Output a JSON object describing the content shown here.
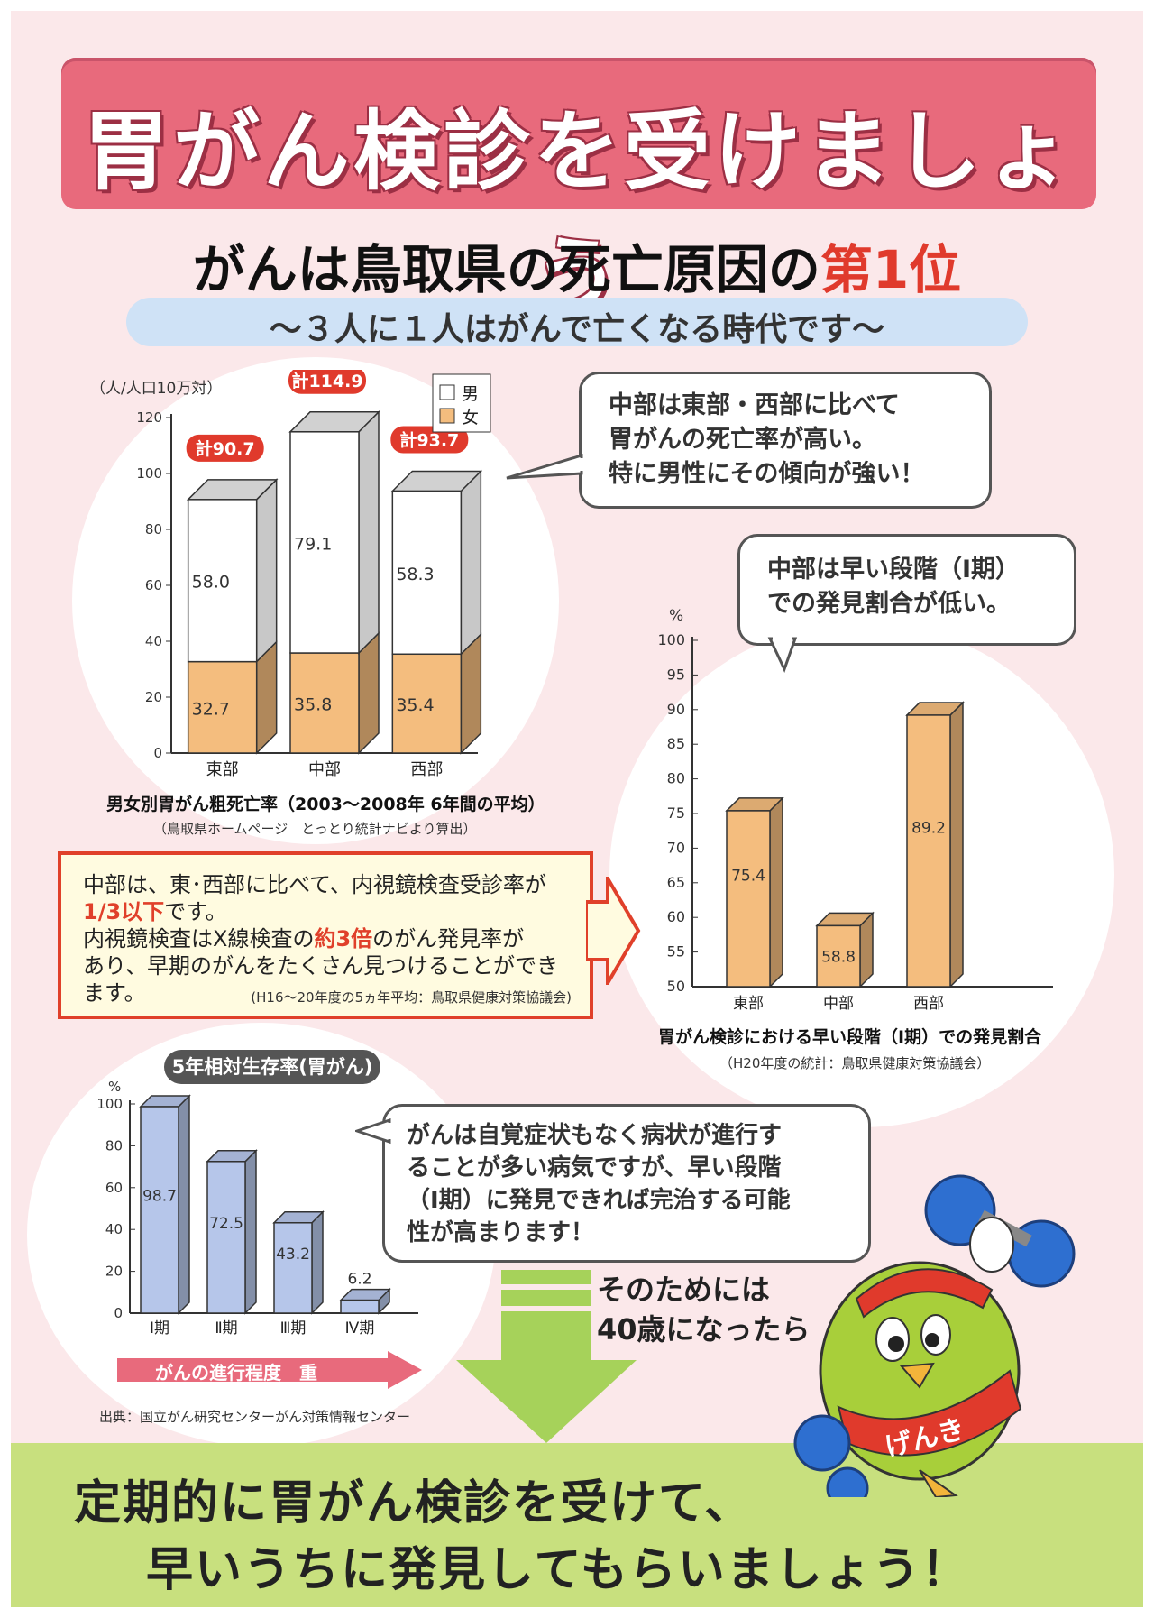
{
  "title": "胃がん検診を受けましょう",
  "headline": {
    "text": "がんは鳥取県の死亡原因の",
    "rank": "第1位"
  },
  "subline": "～３人に１人はがんで亡くなる時代です～",
  "chart1_bubble": [
    "中部は東部・西部に比べて",
    "胃がんの死亡率が高い。",
    "特に男性にその傾向が強い！"
  ],
  "chart2_bubble": [
    "中部は早い段階（Ⅰ期）",
    "での発見割合が低い。"
  ],
  "chart3_bubble": [
    "がんは自覚症状もなく病状が進行す",
    "ることが多い病気ですが、早い段階",
    "（Ⅰ期）に発見できれば完治する可能",
    "性が高まります！"
  ],
  "info_box": {
    "l1": "中部は、東･西部に比べて、内視鏡検査受診率が",
    "l2_hl": "1/3以下",
    "l2": "です。",
    "l3a": "内視鏡検査はX線検査の",
    "l3_hl": "約3倍",
    "l3b": "のがん発見率が",
    "l4": "あり、早期のがんをたくさん見つけることができ",
    "l5": "ます。",
    "source": "(H16～20年度の5ヵ年平均：鳥取県健康対策協議会)"
  },
  "survival_badge": "5年相対生存率(胃がん)",
  "stage_label": "がんの進行程度　重",
  "source3": "出典：国立がん研究センターがん対策情報センター",
  "callout": [
    "そのためには",
    "40歳になったら"
  ],
  "footer": [
    "定期的に胃がん検診を受けて、",
    "早いうちに発見してもらいましょう！"
  ],
  "mascot_text": "げんき",
  "colors": {
    "bar_female": "#f4bd7e",
    "bar_male": "#ffffff",
    "bar_stage": "#b6c6ea",
    "accent_red": "#e0402a",
    "banner": "#e86a7c"
  },
  "chart_data": [
    {
      "type": "bar",
      "title": "男女別胃がん粗死亡率（2003～2008年 6年間の平均）",
      "source": "（鳥取県ホームページ　とっとり統計ナビより算出）",
      "ylabel": "（人/人口10万対）",
      "categories": [
        "東部",
        "中部",
        "西部"
      ],
      "series": [
        {
          "name": "女",
          "values": [
            32.7,
            35.8,
            35.4
          ]
        },
        {
          "name": "男",
          "values": [
            58.0,
            79.1,
            58.3
          ]
        }
      ],
      "totals": [
        "計90.7",
        "計114.9",
        "計93.7"
      ],
      "stacked": true,
      "ylim": [
        0,
        120
      ],
      "yticks": [
        "0",
        "20",
        "40",
        "60",
        "80",
        "100",
        "120"
      ],
      "legend_placement": "top-right"
    },
    {
      "type": "bar",
      "title": "胃がん検診における早い段階（Ⅰ期）での発見割合",
      "source": "（H20年度の統計：鳥取県健康対策協議会）",
      "ylabel": "%",
      "categories": [
        "東部",
        "中部",
        "西部"
      ],
      "values": [
        75.4,
        58.8,
        89.2
      ],
      "ylim": [
        50,
        100
      ],
      "yticks": [
        "50",
        "55",
        "60",
        "65",
        "70",
        "75",
        "80",
        "85",
        "90",
        "95",
        "100"
      ]
    },
    {
      "type": "bar",
      "title": "5年相対生存率(胃がん)",
      "ylabel": "%",
      "categories": [
        "Ⅰ期",
        "Ⅱ期",
        "Ⅲ期",
        "Ⅳ期"
      ],
      "values": [
        98.7,
        72.5,
        43.2,
        6.2
      ],
      "ylim": [
        0,
        100
      ],
      "yticks": [
        "0",
        "20",
        "40",
        "60",
        "80",
        "100"
      ]
    }
  ]
}
